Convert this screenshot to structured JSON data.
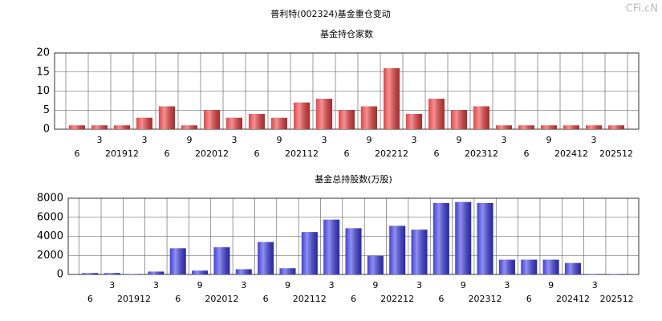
{
  "title": "普利特(002324)基金重仓变动",
  "watermark": "CFi.cN",
  "chart_data": [
    {
      "type": "bar",
      "subtitle": "基金持仓家数",
      "color": "#e8393b",
      "grid": true,
      "categories": [
        "6",
        "3",
        "201912",
        "3",
        "6",
        "9",
        "202012",
        "3",
        "6",
        "9",
        "202112",
        "3",
        "6",
        "9",
        "202212",
        "3",
        "6",
        "9",
        "202312",
        "3",
        "6",
        "9",
        "202412",
        "3",
        "202512"
      ],
      "values": [
        1,
        1,
        1,
        3,
        6,
        1,
        5,
        3,
        4,
        3,
        7,
        8,
        5,
        6,
        16,
        4,
        8,
        5,
        6,
        1,
        1,
        1,
        1,
        1,
        1
      ],
      "ylim": [
        0,
        20
      ],
      "yticks": [
        0,
        5,
        10,
        15,
        20
      ]
    },
    {
      "type": "bar",
      "subtitle": "基金总持股数(万股)",
      "color": "#3636e0",
      "grid": true,
      "categories": [
        "6",
        "3",
        "201912",
        "3",
        "6",
        "9",
        "202012",
        "3",
        "6",
        "9",
        "202112",
        "3",
        "6",
        "9",
        "202212",
        "3",
        "6",
        "9",
        "202312",
        "3",
        "6",
        "9",
        "202412",
        "3",
        "202512"
      ],
      "values": [
        150,
        150,
        50,
        300,
        2750,
        400,
        2850,
        550,
        3400,
        650,
        4450,
        5750,
        4850,
        1950,
        5100,
        4700,
        7500,
        7600,
        7500,
        1550,
        1550,
        1550,
        1200,
        50,
        50
      ],
      "ylim": [
        0,
        8000
      ],
      "yticks": [
        0,
        2000,
        4000,
        6000,
        8000
      ]
    }
  ]
}
